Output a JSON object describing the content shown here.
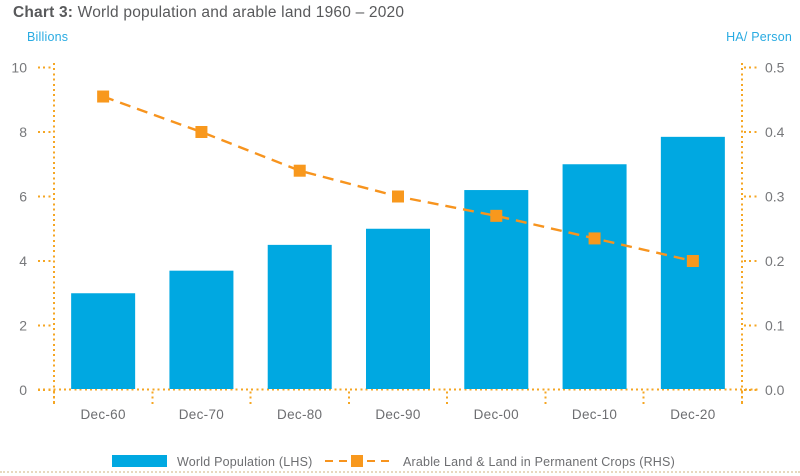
{
  "title": {
    "prefix": "Chart 3:",
    "rest": " World population and arable land 1960 – 2020"
  },
  "axes": {
    "left_unit": "Billions",
    "right_unit": "HA/ Person"
  },
  "legend": {
    "population_label": "World Population (LHS)",
    "arable_label": "Arable Land & Land in Permanent Crops (RHS)"
  },
  "colors": {
    "bar_blue": "#00A8E1",
    "accent_blue": "#29ABE2",
    "marker_orange": "#F8981D",
    "line_orange": "#F7941E",
    "axis_dot_orange": "#F5A623",
    "tick_text_gray": "#77787B",
    "label_gray": "#6D6E71",
    "title_gray": "#58595B"
  },
  "chart_data": {
    "type": "bar+line",
    "title": "Chart 3: World population and arable land 1960 – 2020",
    "categories": [
      "Dec-60",
      "Dec-70",
      "Dec-80",
      "Dec-90",
      "Dec-00",
      "Dec-10",
      "Dec-20"
    ],
    "series": [
      {
        "name": "World Population (LHS)",
        "type": "bar",
        "axis": "left",
        "values": [
          3.0,
          3.7,
          4.5,
          5.0,
          6.2,
          7.0,
          7.85
        ]
      },
      {
        "name": "Arable Land & Land in Permanent Crops (RHS)",
        "type": "line",
        "axis": "right",
        "values": [
          0.455,
          0.4,
          0.34,
          0.3,
          0.27,
          0.235,
          0.2
        ]
      }
    ],
    "left_axis": {
      "label": "Billions",
      "min": 0,
      "max": 10,
      "ticks": [
        0,
        2,
        4,
        6,
        8,
        10
      ],
      "tick_labels": [
        "0",
        "2",
        "4",
        "6",
        "8",
        "10"
      ]
    },
    "right_axis": {
      "label": "HA/ Person",
      "min": 0,
      "max": 0.5,
      "ticks": [
        0,
        0.1,
        0.2,
        0.3,
        0.4,
        0.5
      ],
      "tick_labels": [
        "0.0",
        "0.1",
        "0.2",
        "0.3",
        "0.4",
        "0.5"
      ]
    },
    "grid": "none",
    "legend_position": "bottom"
  }
}
